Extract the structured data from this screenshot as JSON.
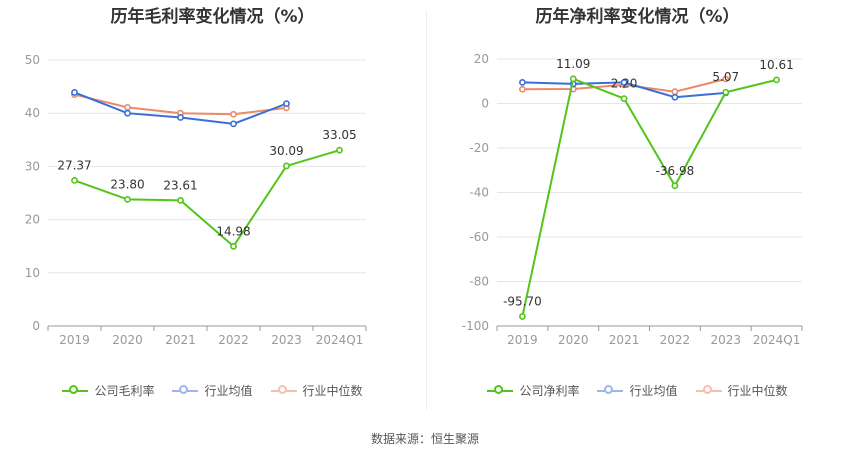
{
  "source_text": "数据来源：恒生聚源",
  "colors": {
    "company": "#52c41a",
    "industry_avg": "#3a6fd8",
    "industry_median": "#ee8866",
    "grid": "#e6e6e6",
    "axis": "#999999",
    "label": "#333333"
  },
  "chart_data": [
    {
      "type": "line",
      "title": "历年毛利率变化情况（%）",
      "categories": [
        "2019",
        "2020",
        "2021",
        "2022",
        "2023",
        "2024Q1"
      ],
      "ylim": [
        0,
        50
      ],
      "yticks": [
        0,
        10,
        20,
        30,
        40,
        50
      ],
      "series": [
        {
          "name": "公司毛利率",
          "key": "company",
          "values": [
            27.37,
            23.8,
            23.61,
            14.98,
            30.09,
            33.05
          ],
          "labels": [
            "27.37",
            "23.80",
            "23.61",
            "14.98",
            "30.09",
            "33.05"
          ]
        },
        {
          "name": "行业均值",
          "key": "industry_avg",
          "values": [
            43.9,
            40.0,
            39.2,
            38.0,
            41.8,
            null
          ]
        },
        {
          "name": "行业中位数",
          "key": "industry_median",
          "values": [
            43.5,
            41.1,
            40.0,
            39.8,
            41.0,
            null
          ]
        }
      ]
    },
    {
      "type": "line",
      "title": "历年净利率变化情况（%）",
      "categories": [
        "2019",
        "2020",
        "2021",
        "2022",
        "2023",
        "2024Q1"
      ],
      "ylim": [
        -100,
        20
      ],
      "yticks": [
        -100,
        -80,
        -60,
        -40,
        -20,
        0,
        20
      ],
      "series": [
        {
          "name": "公司净利率",
          "key": "company",
          "values": [
            -95.7,
            11.09,
            2.2,
            -36.98,
            5.07,
            10.61
          ],
          "labels": [
            "-95.70",
            "11.09",
            "2.20",
            "-36.98",
            "5.07",
            "10.61"
          ]
        },
        {
          "name": "行业均值",
          "key": "industry_avg",
          "values": [
            9.5,
            8.8,
            9.5,
            2.8,
            4.8,
            null
          ]
        },
        {
          "name": "行业中位数",
          "key": "industry_median",
          "values": [
            6.4,
            6.5,
            8.4,
            5.3,
            11.0,
            null
          ]
        }
      ]
    }
  ]
}
